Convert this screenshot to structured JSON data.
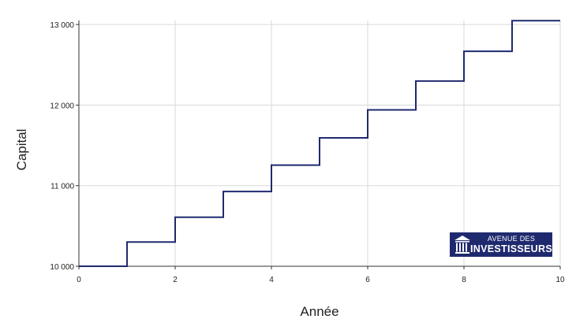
{
  "chart_data": {
    "type": "line",
    "step": "post",
    "title": "",
    "xlabel": "Année",
    "ylabel": "Capital",
    "xlim": [
      0,
      10
    ],
    "ylim": [
      10000,
      13050
    ],
    "x_ticks": [
      "0",
      "2",
      "4",
      "6",
      "8",
      "10"
    ],
    "y_ticks": [
      "10 000",
      "11 000",
      "12 000",
      "13 000"
    ],
    "grid": true,
    "legend": "none",
    "series": [
      {
        "x": [
          0,
          1,
          2,
          3,
          4,
          5,
          6,
          7,
          8,
          9,
          10
        ],
        "y": [
          10000,
          10300,
          10609,
          10927,
          11255,
          11593,
          11941,
          12299,
          12668,
          13048,
          13048
        ],
        "color": "#1f2a6e"
      }
    ]
  },
  "watermark": {
    "line1": "AVENUE DES",
    "line2": "INVESTISSEURS",
    "background": "#1f2a6e",
    "icon": "bank-building-icon"
  }
}
